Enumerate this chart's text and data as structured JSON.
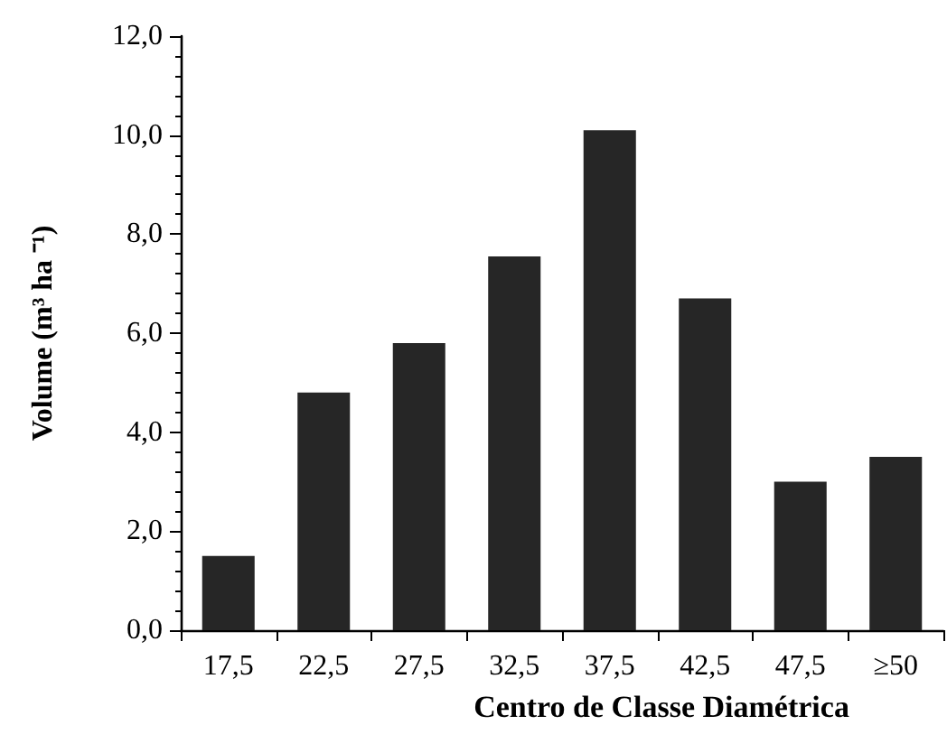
{
  "chart_data": {
    "type": "bar",
    "xlabel": "Centro de Classe Diamétrica",
    "ylabel": "Volume (m³ ha ⁻¹)",
    "categories": [
      "17,5",
      "22,5",
      "27,5",
      "32,5",
      "37,5",
      "42,5",
      "47,5",
      "≥50"
    ],
    "values": [
      1.5,
      4.8,
      5.8,
      7.55,
      10.1,
      6.7,
      3.0,
      3.5
    ],
    "color": "#262626",
    "ylim": [
      0,
      12
    ],
    "yticks": [
      {
        "value": 0,
        "label": "0,0"
      },
      {
        "value": 2,
        "label": "2,0"
      },
      {
        "value": 4,
        "label": "4,0"
      },
      {
        "value": 6,
        "label": "6,0"
      },
      {
        "value": 8,
        "label": "8,0"
      },
      {
        "value": 10,
        "label": "10,0"
      },
      {
        "value": 12,
        "label": "12,0"
      }
    ],
    "grid": false
  }
}
